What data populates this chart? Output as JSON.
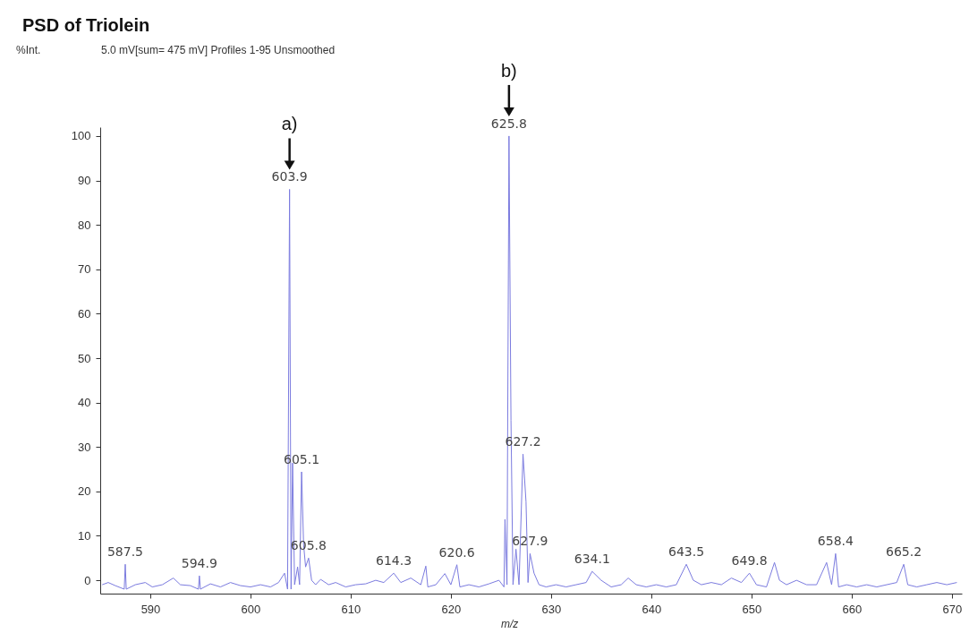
{
  "chart_data": {
    "type": "line",
    "title": "PSD of Triolein",
    "subtitle": "5.0 mV[sum= 475 mV]  Profiles 1-95 Unsmoothed",
    "xlabel": "m/z",
    "xlim": [
      585,
      671
    ],
    "xticks": [
      590,
      600,
      610,
      620,
      630,
      640,
      650,
      660,
      670
    ],
    "ylim": [
      -3,
      102
    ],
    "yticks": [
      0,
      10,
      20,
      30,
      40,
      50,
      60,
      70,
      80,
      90,
      100
    ],
    "x": [
      585.2,
      585.8,
      586.5,
      587.4,
      587.5,
      587.6,
      588.5,
      589.5,
      590.2,
      591.2,
      592.3,
      593.0,
      594.0,
      594.8,
      594.9,
      595.0,
      596.0,
      597.0,
      598.0,
      599.0,
      600.0,
      601.0,
      602.0,
      602.8,
      603.4,
      603.7,
      603.9,
      604.05,
      604.2,
      604.4,
      604.7,
      604.9,
      605.1,
      605.3,
      605.5,
      605.8,
      606.1,
      606.5,
      607.0,
      607.8,
      608.5,
      609.5,
      610.5,
      611.5,
      612.5,
      613.3,
      614.3,
      615.0,
      616.0,
      617.0,
      617.5,
      617.7,
      618.5,
      619.4,
      620.0,
      620.6,
      620.9,
      621.8,
      622.8,
      623.8,
      624.8,
      625.3,
      625.4,
      625.6,
      625.8,
      626.0,
      626.2,
      626.5,
      626.8,
      627.2,
      627.5,
      627.7,
      627.9,
      628.3,
      628.8,
      629.5,
      630.5,
      631.5,
      632.5,
      633.5,
      634.1,
      635.0,
      636.0,
      637.0,
      637.7,
      638.5,
      639.5,
      640.5,
      641.5,
      642.5,
      643.5,
      644.2,
      645.0,
      646.0,
      647.0,
      648.0,
      649.0,
      649.8,
      650.5,
      651.5,
      652.3,
      652.8,
      653.5,
      654.5,
      655.5,
      656.5,
      657.5,
      658.0,
      658.4,
      658.7,
      659.5,
      660.5,
      661.5,
      662.5,
      663.5,
      664.5,
      665.2,
      665.6,
      666.5,
      667.5,
      668.5,
      669.5,
      670.5
    ],
    "series": [
      {
        "color": "#7b7bdf",
        "values": [
          -1,
          -0.5,
          -1.2,
          -2,
          3.6,
          -2,
          -1,
          -0.5,
          -1.5,
          -1,
          0.5,
          -1,
          -1.2,
          -2,
          1,
          -2,
          -0.8,
          -1.5,
          -0.5,
          -1.2,
          -1.5,
          -1,
          -1.5,
          -0.5,
          1.6,
          -2,
          88,
          -2,
          26.4,
          -1,
          3,
          -1,
          24.4,
          8,
          3,
          5,
          0,
          -1,
          0.2,
          -1,
          -0.5,
          -1.5,
          -1,
          -0.8,
          0,
          -0.5,
          1.6,
          -0.5,
          0.5,
          -1,
          3.2,
          -1.5,
          -1,
          1.5,
          -1,
          3.5,
          -1.5,
          -1,
          -1.5,
          -0.8,
          0,
          -1.5,
          13.7,
          -1,
          100,
          36,
          -1,
          7,
          -1,
          28.4,
          17.7,
          -0.5,
          6,
          1.6,
          -1,
          -1.5,
          -1,
          -1.5,
          -1,
          -0.5,
          2,
          0,
          -1.5,
          -1,
          0.5,
          -1,
          -1.5,
          -1,
          -1.5,
          -1,
          3.6,
          0,
          -1,
          -0.5,
          -1,
          0.5,
          -0.5,
          1.6,
          -1,
          -1.5,
          4,
          0,
          -1,
          0,
          -1,
          -1,
          4,
          -1,
          6,
          -1.5,
          -1,
          -1.5,
          -1,
          -1.5,
          -1,
          -0.5,
          3.6,
          -1,
          -1.5,
          -1,
          -0.5,
          -1,
          -0.5
        ]
      }
    ],
    "annotations": [
      "%Int.",
      {
        "text": "587.5",
        "x": 587.5,
        "y": 3.6
      },
      {
        "text": "594.9",
        "x": 594.9,
        "y": 1
      },
      {
        "text": "603.9",
        "x": 603.9,
        "y": 88
      },
      {
        "text": "605.1",
        "x": 605.1,
        "y": 24.4
      },
      {
        "text": "605.8",
        "x": 605.8,
        "y": 5
      },
      {
        "text": "614.3",
        "x": 614.3,
        "y": 1.6
      },
      {
        "text": "620.6",
        "x": 620.6,
        "y": 3.5
      },
      {
        "text": "625.8",
        "x": 625.8,
        "y": 100
      },
      {
        "text": "627.2",
        "x": 627.2,
        "y": 28.4
      },
      {
        "text": "627.9",
        "x": 627.9,
        "y": 6
      },
      {
        "text": "634.1",
        "x": 634.1,
        "y": 2
      },
      {
        "text": "643.5",
        "x": 643.5,
        "y": 3.6
      },
      {
        "text": "649.8",
        "x": 649.8,
        "y": 1.6
      },
      {
        "text": "658.4",
        "x": 658.4,
        "y": 6
      },
      {
        "text": "665.2",
        "x": 665.2,
        "y": 3.6
      },
      "a)",
      "b)"
    ]
  }
}
